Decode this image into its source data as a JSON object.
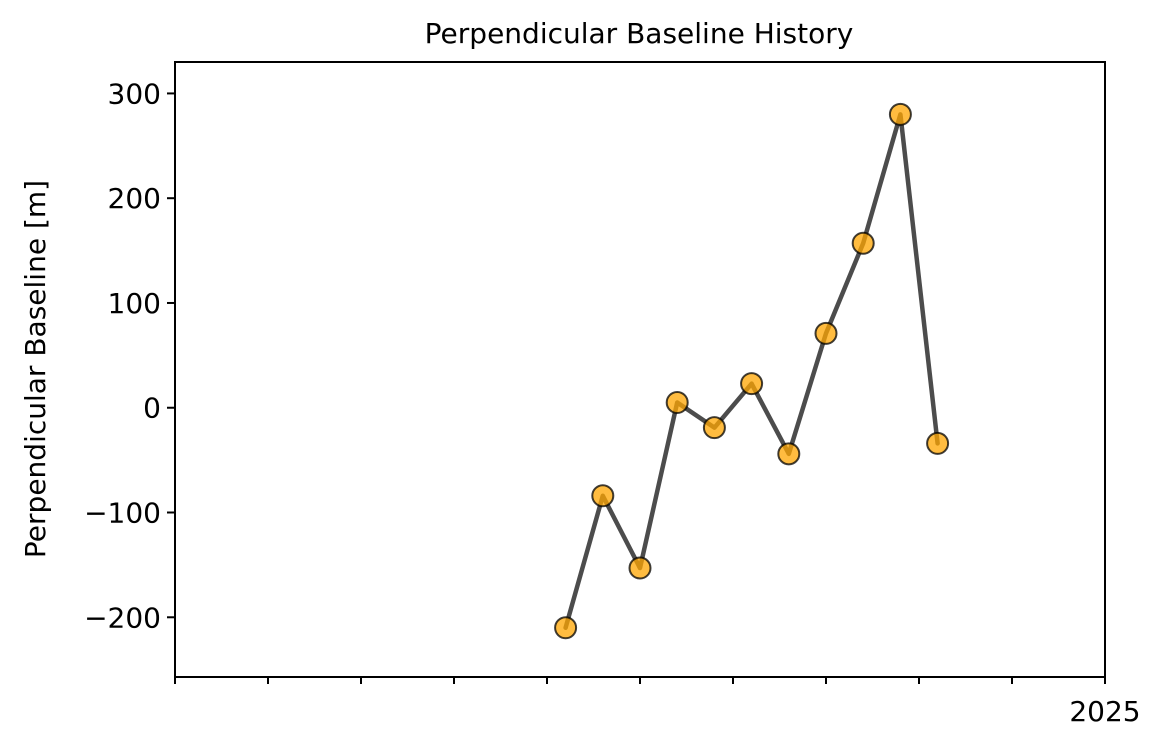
{
  "chart_data": {
    "type": "line",
    "title": "Perpendicular Baseline History",
    "xlabel": "",
    "ylabel": "Perpendicular Baseline [m]",
    "x_tick_labels": [
      "",
      "",
      "",
      "",
      "",
      "",
      "",
      "",
      "",
      "",
      "2025"
    ],
    "y_ticks": [
      {
        "value": 300,
        "label": "300"
      },
      {
        "value": 200,
        "label": "200"
      },
      {
        "value": 100,
        "label": "100"
      },
      {
        "value": 0,
        "label": "0"
      },
      {
        "value": -100,
        "label": "−100"
      },
      {
        "value": -200,
        "label": "−200"
      }
    ],
    "ylim": [
      -257,
      330
    ],
    "grid": false,
    "legend": "none",
    "series": [
      {
        "color": "#ffa500",
        "line_color": "#000000",
        "x": [
          4.2,
          4.6,
          5.0,
          5.4,
          5.8,
          6.2,
          6.6,
          7.0,
          7.4,
          7.8,
          8.2
        ],
        "values": [
          -210,
          -84,
          -153,
          5,
          -19,
          23,
          -44,
          71,
          157,
          280,
          -34
        ]
      }
    ],
    "xlim": [
      0,
      10
    ]
  }
}
